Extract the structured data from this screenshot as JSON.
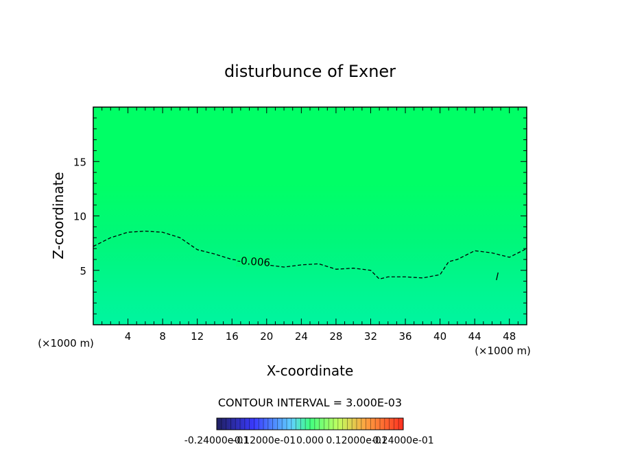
{
  "chart_data": {
    "type": "heatmap",
    "title": "disturbunce of Exner",
    "xlabel": "X-coordinate",
    "ylabel": "Z-coordinate",
    "x_unit_left": "(×1000 m)",
    "x_unit_right": "(×1000 m)",
    "xlim": [
      0,
      50
    ],
    "ylim": [
      0,
      20
    ],
    "x_ticks": [
      4,
      8,
      12,
      16,
      20,
      24,
      28,
      32,
      36,
      40,
      44,
      48
    ],
    "y_ticks": [
      5,
      10,
      15
    ],
    "field_colors": {
      "top": "#00ff66",
      "middle": "#00f77a",
      "bottom": "#00f5a0"
    },
    "contour": {
      "level_label": "-0.006",
      "style": "dashed",
      "x": [
        0,
        2,
        4,
        6,
        8,
        10,
        12,
        14,
        16,
        18,
        20,
        22,
        24,
        26,
        28,
        30,
        32,
        33,
        34,
        36,
        38,
        40,
        41,
        42,
        44,
        46,
        48,
        50
      ],
      "y": [
        7.2,
        8.0,
        8.5,
        8.6,
        8.5,
        8.0,
        6.9,
        6.5,
        6.0,
        5.8,
        5.5,
        5.3,
        5.5,
        5.6,
        5.1,
        5.2,
        5.0,
        4.2,
        4.4,
        4.4,
        4.3,
        4.6,
        5.8,
        6.0,
        6.8,
        6.6,
        6.2,
        7.0
      ],
      "small_mark": {
        "x": [
          46.5,
          46.7
        ],
        "y": [
          4.1,
          4.8
        ]
      }
    },
    "contour_interval_text": "CONTOUR INTERVAL = 3.000E-03",
    "colorbar": {
      "tick_labels": [
        "-0.24000e-01",
        "-0.12000e-01",
        "0.000",
        "0.12000e-01",
        "0.24000e-01"
      ]
    }
  }
}
